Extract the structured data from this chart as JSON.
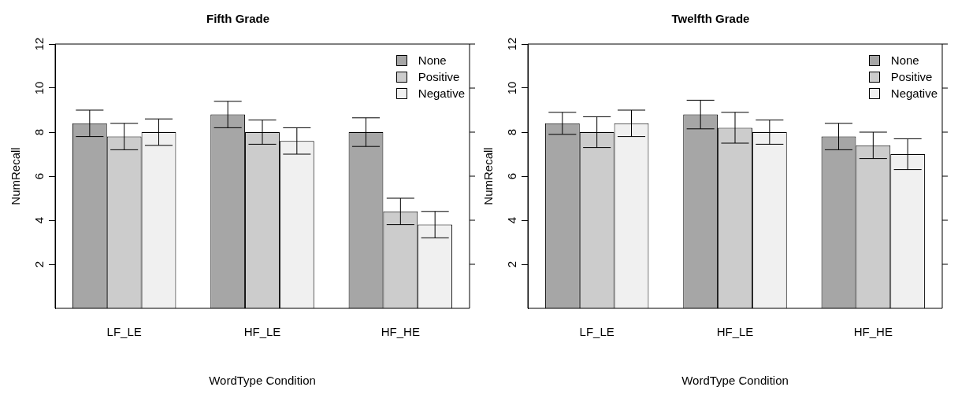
{
  "chart_data": [
    {
      "type": "bar",
      "title": "Fifth Grade",
      "xlabel": "WordType Condition",
      "ylabel": "NumRecall",
      "categories": [
        "LF_LE",
        "HF_LE",
        "HF_HE"
      ],
      "ylim": [
        0,
        12
      ],
      "yticks": [
        2,
        4,
        6,
        8,
        10,
        12
      ],
      "legend": "top right",
      "series": [
        {
          "name": "None",
          "color": "#a6a6a6",
          "values": [
            8.4,
            8.8,
            8.0
          ],
          "errors": [
            0.6,
            0.6,
            0.65
          ]
        },
        {
          "name": "Positive",
          "color": "#cccccc",
          "values": [
            7.8,
            8.0,
            4.4
          ],
          "errors": [
            0.6,
            0.55,
            0.6
          ]
        },
        {
          "name": "Negative",
          "color": "#f0f0f0",
          "values": [
            8.0,
            7.6,
            3.8
          ],
          "errors": [
            0.6,
            0.6,
            0.6
          ]
        }
      ]
    },
    {
      "type": "bar",
      "title": "Twelfth Grade",
      "xlabel": "WordType Condition",
      "ylabel": "NumRecall",
      "categories": [
        "LF_LE",
        "HF_LE",
        "HF_HE"
      ],
      "ylim": [
        0,
        12
      ],
      "yticks": [
        2,
        4,
        6,
        8,
        10,
        12
      ],
      "legend": "top right",
      "series": [
        {
          "name": "None",
          "color": "#a6a6a6",
          "values": [
            8.4,
            8.8,
            7.8
          ],
          "errors": [
            0.5,
            0.65,
            0.6
          ]
        },
        {
          "name": "Positive",
          "color": "#cccccc",
          "values": [
            8.0,
            8.2,
            7.4
          ],
          "errors": [
            0.7,
            0.7,
            0.6
          ]
        },
        {
          "name": "Negative",
          "color": "#f0f0f0",
          "values": [
            8.4,
            8.0,
            7.0
          ],
          "errors": [
            0.6,
            0.55,
            0.7
          ]
        }
      ]
    }
  ]
}
